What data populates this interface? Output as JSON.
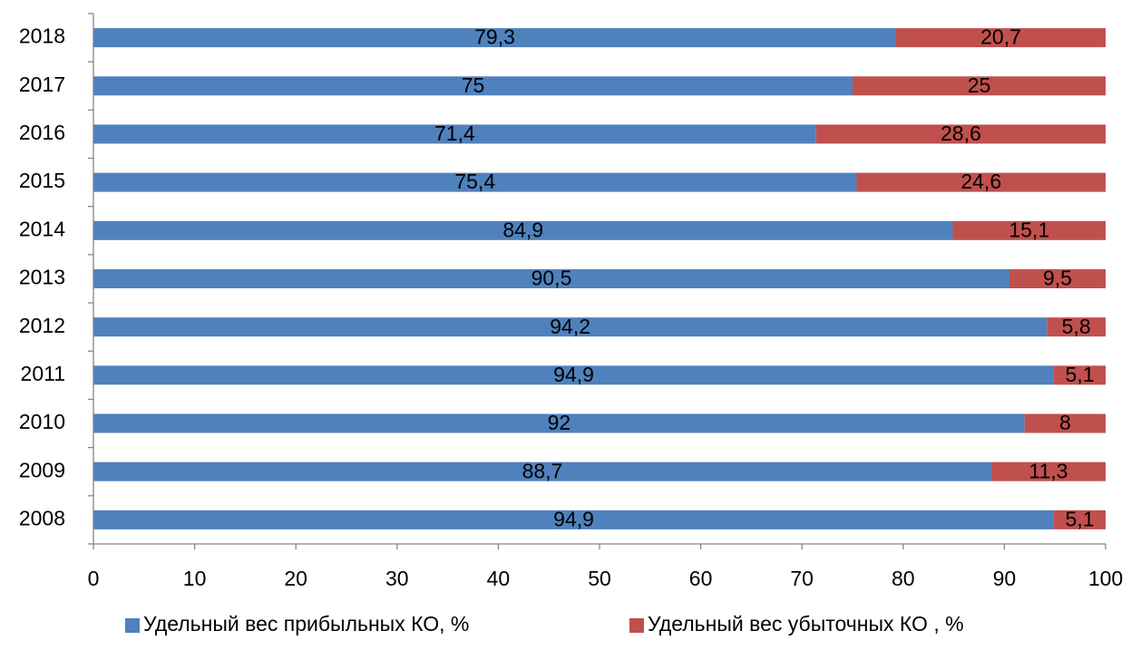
{
  "chart_data": {
    "type": "stacked-barh",
    "categories": [
      "2008",
      "2009",
      "2010",
      "2011",
      "2012",
      "2013",
      "2014",
      "2015",
      "2016",
      "2017",
      "2018"
    ],
    "series": [
      {
        "name": "Удельный вес прибыльных КО, %",
        "color": "#4f81bd",
        "values": [
          94.9,
          88.7,
          92,
          94.9,
          94.2,
          90.5,
          84.9,
          75.4,
          71.4,
          75,
          79.3
        ],
        "value_labels": [
          "94,9",
          "88,7",
          "92",
          "94,9",
          "94,2",
          "90,5",
          "84,9",
          "75,4",
          "71,4",
          "75",
          "79,3"
        ]
      },
      {
        "name": "Удельный вес убыточных КО , %",
        "color": "#c0504d",
        "values": [
          5.1,
          11.3,
          8,
          5.1,
          5.8,
          9.5,
          15.1,
          24.6,
          28.6,
          25,
          20.7
        ],
        "value_labels": [
          "5,1",
          "11,3",
          "8",
          "5,1",
          "5,8",
          "9,5",
          "15,1",
          "24,6",
          "28,6",
          "25",
          "20,7"
        ]
      }
    ],
    "xlim": [
      0,
      100
    ],
    "xticks": [
      0,
      10,
      20,
      30,
      40,
      50,
      60,
      70,
      80,
      90,
      100
    ],
    "legend": "bottom"
  }
}
